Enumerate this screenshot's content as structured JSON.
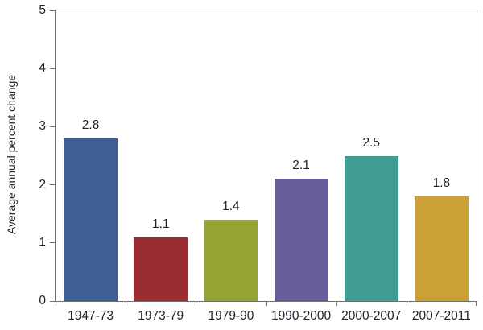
{
  "chart_data": {
    "type": "bar",
    "title": "",
    "xlabel": "",
    "ylabel": "Average annual percent change",
    "categories": [
      "1947-73",
      "1973-79",
      "1979-90",
      "1990-2000",
      "2000-2007",
      "2007-2011"
    ],
    "values": [
      2.8,
      1.1,
      1.4,
      2.1,
      2.5,
      1.8
    ],
    "value_labels": [
      "2.8",
      "1.1",
      "1.4",
      "2.1",
      "2.5",
      "1.8"
    ],
    "bar_colors": [
      "#3E5F94",
      "#9A2D32",
      "#95A434",
      "#675D9B",
      "#3F9D94",
      "#CBA135"
    ],
    "ylim": [
      0,
      5
    ],
    "yticks": [
      0,
      1,
      2,
      3,
      4,
      5
    ],
    "grid": false,
    "legend": "none",
    "axis_color": "#707070",
    "border_color": "#C9C9C9",
    "text_color": "#26222C"
  }
}
